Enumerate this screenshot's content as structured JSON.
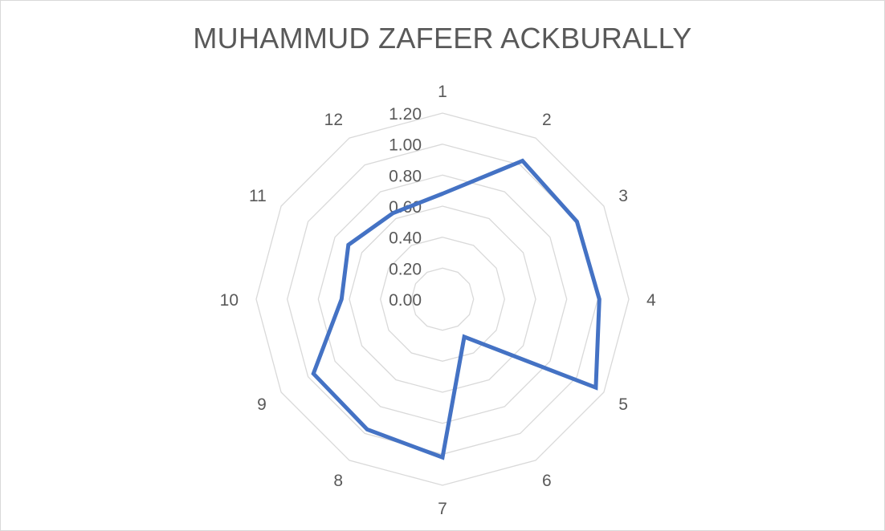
{
  "chart_data": {
    "type": "radar",
    "title": "MUHAMMUD ZAFEER ACKBURALLY",
    "categories": [
      "1",
      "2",
      "3",
      "4",
      "5",
      "6",
      "7",
      "8",
      "9",
      "10",
      "11",
      "12"
    ],
    "series": [
      {
        "values": [
          0.68,
          1.03,
          1.0,
          1.01,
          1.14,
          0.28,
          1.02,
          0.97,
          0.96,
          0.65,
          0.7,
          0.64
        ],
        "color": "#4472c4"
      }
    ],
    "rlim": [
      0,
      1.2
    ],
    "ticks": [
      "0.00",
      "0.20",
      "0.40",
      "0.60",
      "0.80",
      "1.00",
      "1.20"
    ],
    "grid": true,
    "legend": "none"
  }
}
